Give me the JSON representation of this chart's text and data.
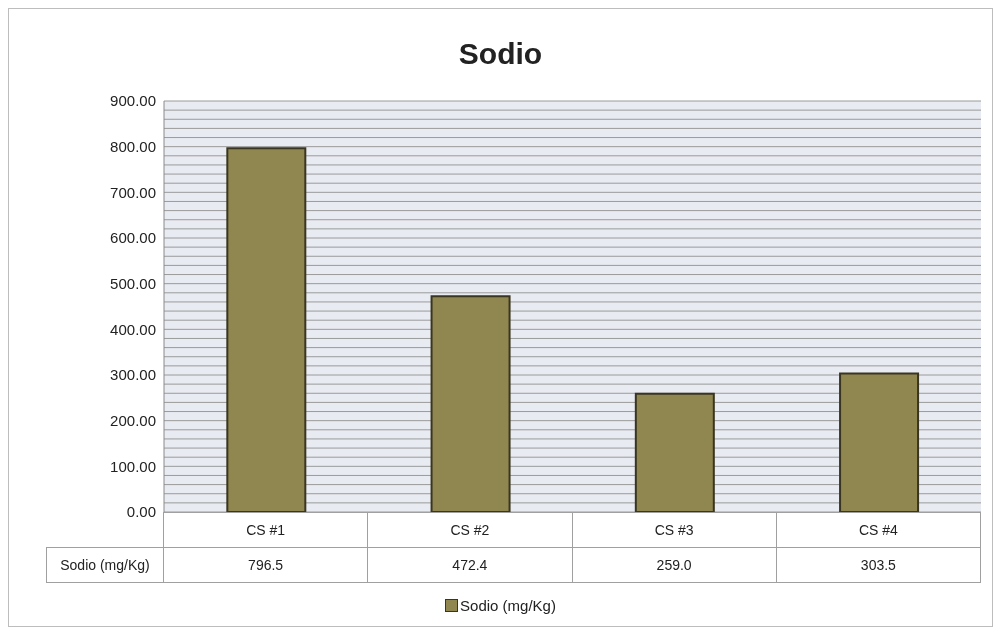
{
  "chart_data": {
    "type": "bar",
    "title": "Sodio",
    "categories": [
      "CS #1",
      "CS #2",
      "CS #3",
      "CS #4"
    ],
    "series": [
      {
        "name": "Sodio (mg/Kg)",
        "color": "#8f8650",
        "values": [
          796.5,
          472.4,
          259.0,
          303.5
        ]
      }
    ],
    "value_labels": [
      "796.5",
      "472.4",
      "259.0",
      "303.5"
    ],
    "ylim": [
      0,
      900
    ],
    "yticks": [
      {
        "value": 0,
        "label": "0.00"
      },
      {
        "value": 20,
        "label": null
      },
      {
        "value": 40,
        "label": null
      },
      {
        "value": 60,
        "label": null
      },
      {
        "value": 80,
        "label": null
      },
      {
        "value": 100,
        "label": "100.00"
      },
      {
        "value": 120,
        "label": null
      },
      {
        "value": 140,
        "label": null
      },
      {
        "value": 160,
        "label": null
      },
      {
        "value": 180,
        "label": null
      },
      {
        "value": 200,
        "label": "200.00"
      },
      {
        "value": 220,
        "label": null
      },
      {
        "value": 240,
        "label": null
      },
      {
        "value": 260,
        "label": null
      },
      {
        "value": 280,
        "label": null
      },
      {
        "value": 300,
        "label": "300.00"
      },
      {
        "value": 320,
        "label": null
      },
      {
        "value": 340,
        "label": null
      },
      {
        "value": 360,
        "label": null
      },
      {
        "value": 380,
        "label": null
      },
      {
        "value": 400,
        "label": "400.00"
      },
      {
        "value": 420,
        "label": null
      },
      {
        "value": 440,
        "label": null
      },
      {
        "value": 460,
        "label": null
      },
      {
        "value": 480,
        "label": null
      },
      {
        "value": 500,
        "label": "500.00"
      },
      {
        "value": 520,
        "label": null
      },
      {
        "value": 540,
        "label": null
      },
      {
        "value": 560,
        "label": null
      },
      {
        "value": 580,
        "label": null
      },
      {
        "value": 600,
        "label": "600.00"
      },
      {
        "value": 620,
        "label": null
      },
      {
        "value": 640,
        "label": null
      },
      {
        "value": 660,
        "label": null
      },
      {
        "value": 680,
        "label": null
      },
      {
        "value": 700,
        "label": "700.00"
      },
      {
        "value": 720,
        "label": null
      },
      {
        "value": 740,
        "label": null
      },
      {
        "value": 760,
        "label": null
      },
      {
        "value": 780,
        "label": null
      },
      {
        "value": 800,
        "label": "800.00"
      },
      {
        "value": 820,
        "label": null
      },
      {
        "value": 840,
        "label": null
      },
      {
        "value": 860,
        "label": null
      },
      {
        "value": 880,
        "label": null
      },
      {
        "value": 900,
        "label": "900.00"
      }
    ],
    "grid": "y",
    "legend": "bottom"
  }
}
